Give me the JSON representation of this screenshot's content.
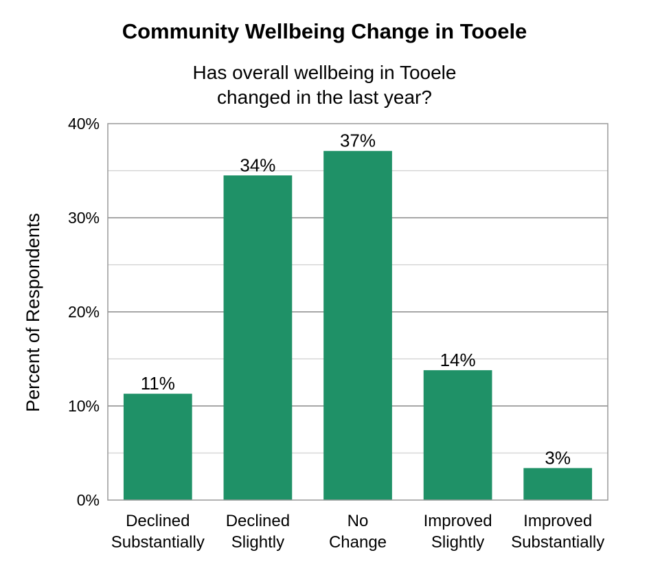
{
  "chart_data": {
    "type": "bar",
    "title": "Community Wellbeing Change in Tooele",
    "subtitle": [
      "Has overall wellbeing in Tooele",
      "changed in the last year?"
    ],
    "ylabel": "Percent of Respondents",
    "xlabel": "",
    "ylim": [
      0,
      40
    ],
    "y_ticks": [
      "0%",
      "10%",
      "20%",
      "30%",
      "40%"
    ],
    "categories": [
      [
        "Declined",
        "Substantially"
      ],
      [
        "Declined",
        "Slightly"
      ],
      [
        "No",
        "Change"
      ],
      [
        "Improved",
        "Slightly"
      ],
      [
        "Improved",
        "Substantially"
      ]
    ],
    "values": [
      11.3,
      34.5,
      37.1,
      13.8,
      3.4
    ],
    "value_labels": [
      "11%",
      "34%",
      "37%",
      "14%",
      "3%"
    ],
    "bar_color": "#1f9167",
    "grid": true,
    "legend": "none"
  }
}
